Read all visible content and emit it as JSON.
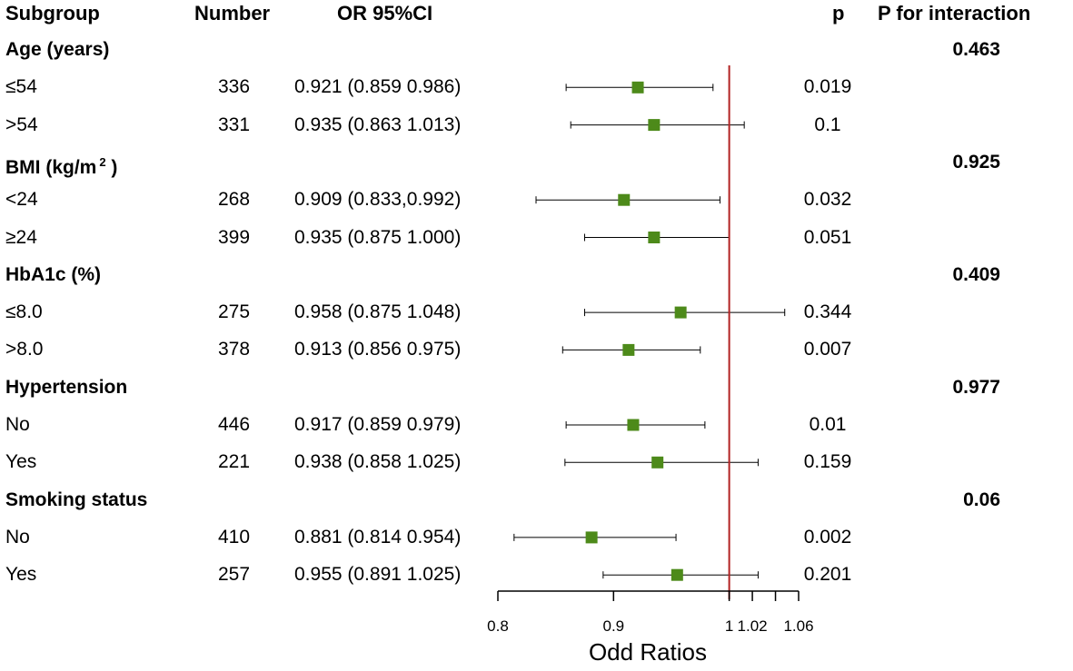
{
  "headers": {
    "subgroup": "Subgroup",
    "number": "Number",
    "or_ci": "OR 95%CI",
    "p": "p",
    "p_interaction": "P for interaction"
  },
  "chart_data": {
    "type": "forest",
    "xlabel": "Odd Ratios",
    "xlim": [
      0.8,
      1.06
    ],
    "reference_line": 1.0,
    "tick_values": [
      0.8,
      0.9,
      1.0,
      1.02,
      1.04,
      1.06
    ],
    "tick_labels": [
      "0.8",
      "0.9",
      "1",
      "1.02",
      "",
      "1.06"
    ],
    "marker_color": "#4d8a1a",
    "reference_color": "#b22222",
    "groups": [
      {
        "name": "Age  (years)",
        "p_interaction": "0.463",
        "rows": [
          {
            "label": "≤54",
            "number": "336",
            "or_ci": "0.921 (0.859 0.986)",
            "or": 0.921,
            "lo": 0.859,
            "hi": 0.986,
            "p": "0.019"
          },
          {
            "label": ">54",
            "number": "331",
            "or_ci": "0.935 (0.863 1.013)",
            "or": 0.935,
            "lo": 0.863,
            "hi": 1.013,
            "p": "0.1"
          }
        ]
      },
      {
        "name": "BMI (kg/m",
        "name_sup": "2",
        "name_tail": " )",
        "p_interaction": "0.925",
        "rows": [
          {
            "label": "<24",
            "number": "268",
            "or_ci": "0.909 (0.833,0.992)",
            "or": 0.909,
            "lo": 0.833,
            "hi": 0.992,
            "p": "0.032"
          },
          {
            "label": "≥24",
            "number": "399",
            "or_ci": "0.935 (0.875 1.000)",
            "or": 0.935,
            "lo": 0.875,
            "hi": 1.0,
            "p": "0.051"
          }
        ]
      },
      {
        "name": "HbA1c (%)",
        "p_interaction": "0.409",
        "rows": [
          {
            "label": "≤8.0",
            "number": "275",
            "or_ci": "0.958 (0.875 1.048)",
            "or": 0.958,
            "lo": 0.875,
            "hi": 1.048,
            "p": "0.344"
          },
          {
            "label": ">8.0",
            "number": "378",
            "or_ci": "0.913 (0.856 0.975)",
            "or": 0.913,
            "lo": 0.856,
            "hi": 0.975,
            "p": "0.007"
          }
        ]
      },
      {
        "name": "Hypertension",
        "p_interaction": "0.977",
        "rows": [
          {
            "label": "No",
            "number": "446",
            "or_ci": "0.917 (0.859 0.979)",
            "or": 0.917,
            "lo": 0.859,
            "hi": 0.979,
            "p": "0.01"
          },
          {
            "label": "Yes",
            "number": "221",
            "or_ci": "0.938 (0.858 1.025)",
            "or": 0.938,
            "lo": 0.858,
            "hi": 1.025,
            "p": "0.159"
          }
        ]
      },
      {
        "name": "Smoking status",
        "p_interaction": "0.06",
        "rows": [
          {
            "label": "No",
            "number": "410",
            "or_ci": "0.881 (0.814 0.954)",
            "or": 0.881,
            "lo": 0.814,
            "hi": 0.954,
            "p": "0.002"
          },
          {
            "label": "Yes",
            "number": "257",
            "or_ci": "0.955 (0.891 1.025)",
            "or": 0.955,
            "lo": 0.891,
            "hi": 1.025,
            "p": "0.201"
          }
        ]
      }
    ]
  }
}
